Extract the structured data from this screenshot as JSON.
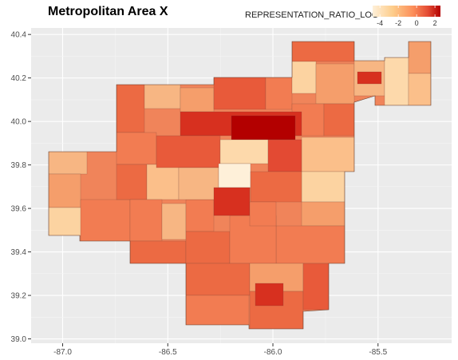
{
  "title": "Metropolitan Area X",
  "legend": {
    "title": "REPRESENTATION_RATIO_LOG",
    "ticks": [
      -4,
      -2,
      0,
      2
    ],
    "range": [
      -4.8,
      2.6
    ],
    "colors": [
      "#fef0d9",
      "#fdcc8a",
      "#fc8d59",
      "#e34a33",
      "#b30000"
    ]
  },
  "map": {
    "background": "#ebebeb",
    "grid": true,
    "xlim": [
      -87.15,
      -85.15
    ],
    "ylim": [
      38.98,
      40.43
    ],
    "x_ticks": [
      -87.0,
      -86.5,
      -86.0,
      -85.5
    ],
    "x_tick_labels": [
      "-87.0",
      "-86.5",
      "-86.0",
      "-85.5"
    ],
    "y_ticks": [
      39.0,
      39.2,
      39.4,
      39.6,
      39.8,
      40.0,
      40.2,
      40.4
    ],
    "y_tick_labels": [
      "39.0",
      "39.2",
      "39.4",
      "39.6",
      "39.8",
      "40.0",
      "40.2",
      "40.4"
    ]
  }
}
